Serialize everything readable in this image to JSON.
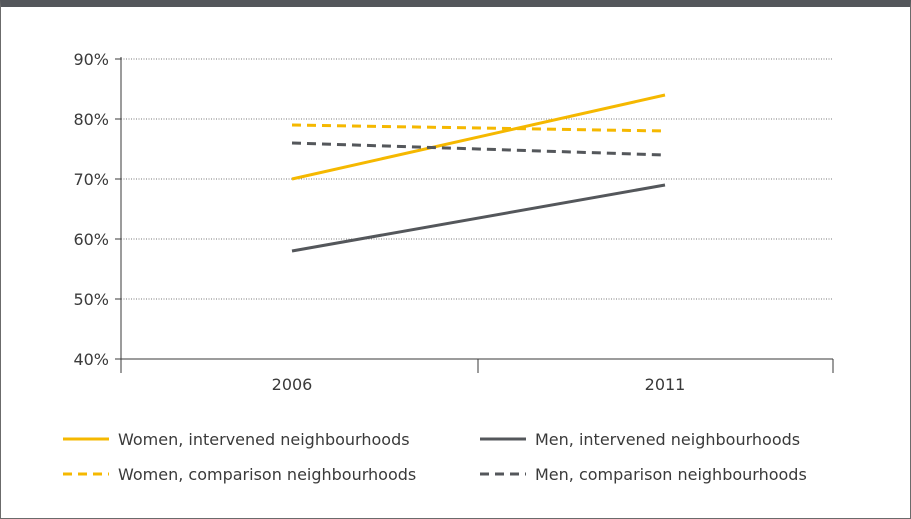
{
  "chart_data": {
    "type": "line",
    "x": [
      "2006",
      "2011"
    ],
    "ylim": [
      40,
      90
    ],
    "y_ticks": [
      "90%",
      "80%",
      "70%",
      "60%",
      "50%",
      "40%"
    ],
    "y_tick_values": [
      90,
      80,
      70,
      60,
      50,
      40
    ],
    "grid": true,
    "legend_position": "bottom",
    "colors": {
      "women": "#f5b800",
      "men": "#54575b",
      "grid": "#7a7a7a",
      "axis": "#3a3a3a"
    },
    "series": [
      {
        "name": "Women, intervened neighbourhoods",
        "values": [
          70,
          84
        ],
        "color": "#f5b800",
        "dashed": false
      },
      {
        "name": "Men, intervened neighbourhoods",
        "values": [
          58,
          69
        ],
        "color": "#54575b",
        "dashed": false
      },
      {
        "name": "Women, comparison neighbourhoods",
        "values": [
          79,
          78
        ],
        "color": "#f5b800",
        "dashed": true
      },
      {
        "name": "Men, comparison neighbourhoods",
        "values": [
          76,
          74
        ],
        "color": "#54575b",
        "dashed": true
      }
    ]
  }
}
